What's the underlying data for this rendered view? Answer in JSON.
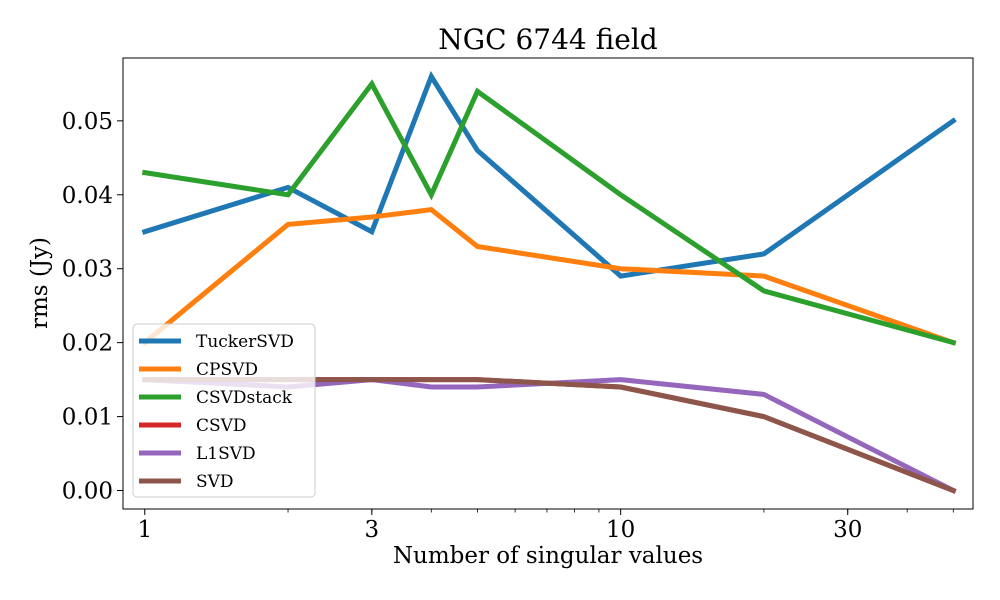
{
  "chart_data": {
    "type": "line",
    "title": "NGC 6744 field",
    "xlabel": "Number of singular values",
    "ylabel": "rms (Jy)",
    "xscale": "log",
    "xlim": [
      0.9,
      55
    ],
    "ylim": [
      -0.0025,
      0.0585
    ],
    "x_ticks": [
      {
        "value": 1,
        "label": "1"
      },
      {
        "value": 3,
        "label": "3"
      },
      {
        "value": 10,
        "label": "10"
      },
      {
        "value": 30,
        "label": "30"
      }
    ],
    "y_ticks": [
      {
        "value": 0.0,
        "label": "0.00"
      },
      {
        "value": 0.01,
        "label": "0.01"
      },
      {
        "value": 0.02,
        "label": "0.02"
      },
      {
        "value": 0.03,
        "label": "0.03"
      },
      {
        "value": 0.04,
        "label": "0.04"
      },
      {
        "value": 0.05,
        "label": "0.05"
      }
    ],
    "x": [
      1,
      2,
      3,
      4,
      5,
      10,
      20,
      50
    ],
    "series": [
      {
        "name": "TuckerSVD",
        "color": "#1f77b4",
        "values": [
          0.035,
          0.041,
          0.035,
          0.056,
          0.046,
          0.029,
          0.032,
          0.05
        ]
      },
      {
        "name": "CPSVD",
        "color": "#ff7f0e",
        "values": [
          0.02,
          0.036,
          0.037,
          0.038,
          0.033,
          0.03,
          0.029,
          0.02
        ]
      },
      {
        "name": "CSVDstack",
        "color": "#2ca02c",
        "values": [
          0.043,
          0.04,
          0.055,
          0.04,
          0.054,
          0.04,
          0.027,
          0.02
        ]
      },
      {
        "name": "CSVD",
        "color": "#d62728",
        "values": [
          0.015,
          0.015,
          0.015,
          0.015,
          0.015,
          0.014,
          0.01,
          0.0
        ]
      },
      {
        "name": "L1SVD",
        "color": "#9467bd",
        "values": [
          0.015,
          0.014,
          0.015,
          0.014,
          0.014,
          0.015,
          0.013,
          0.0
        ]
      },
      {
        "name": "SVD",
        "color": "#8c564b",
        "values": [
          0.015,
          0.015,
          0.015,
          0.015,
          0.015,
          0.014,
          0.01,
          0.0
        ]
      }
    ],
    "legend_position": "lower-left"
  }
}
